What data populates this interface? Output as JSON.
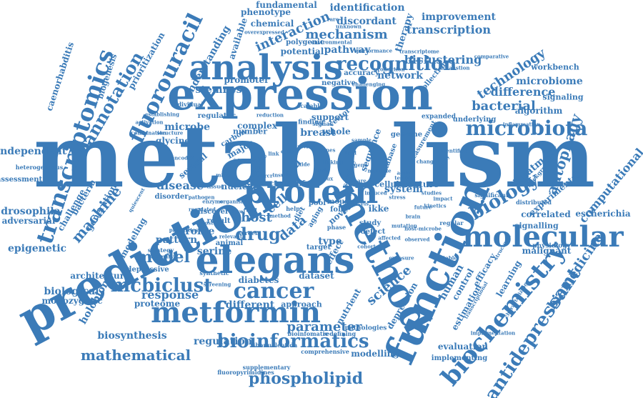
{
  "word_cloud": {
    "color": "#3b7bb8",
    "words": [
      {
        "text": "metabolism"
      },
      {
        "text": "expression"
      },
      {
        "text": "prediction"
      },
      {
        "text": "function"
      },
      {
        "text": "method"
      },
      {
        "text": "elegans"
      },
      {
        "text": "protein"
      },
      {
        "text": "analysis"
      },
      {
        "text": "molecular"
      },
      {
        "text": "metformin"
      },
      {
        "text": "biochemistry"
      },
      {
        "text": "transcriptomics"
      },
      {
        "text": "fluorouracil"
      },
      {
        "text": "cancer"
      },
      {
        "text": "biology"
      },
      {
        "text": "microbiota"
      },
      {
        "text": "recognition"
      },
      {
        "text": "mcbiclust"
      },
      {
        "text": "model"
      },
      {
        "text": "drug"
      },
      {
        "text": "annotation"
      },
      {
        "text": "antidepressant"
      },
      {
        "text": "bioinformatics"
      },
      {
        "text": "phospholipid"
      },
      {
        "text": "mathematical"
      },
      {
        "text": "autophagy"
      },
      {
        "text": "technology"
      },
      {
        "text": "science"
      },
      {
        "text": "computational"
      },
      {
        "text": "biomedicine"
      },
      {
        "text": "caenorhabditis"
      },
      {
        "text": "mechanism"
      },
      {
        "text": "interaction"
      },
      {
        "text": "biclustering"
      },
      {
        "text": "transcription"
      },
      {
        "text": "identification"
      },
      {
        "text": "fundamental"
      },
      {
        "text": "phenotype"
      },
      {
        "text": "discordant"
      },
      {
        "text": "chemical"
      },
      {
        "text": "improvement"
      },
      {
        "text": "microbiome"
      },
      {
        "text": "workbench"
      },
      {
        "text": "difference"
      },
      {
        "text": "bacterial"
      },
      {
        "text": "algorithm"
      },
      {
        "text": "signaling"
      },
      {
        "text": "network"
      },
      {
        "text": "pathway"
      },
      {
        "text": "machine"
      },
      {
        "text": "microbe"
      },
      {
        "text": "disease"
      },
      {
        "text": "pattern"
      },
      {
        "text": "profile"
      },
      {
        "text": "response"
      },
      {
        "text": "proteome"
      },
      {
        "text": "different"
      },
      {
        "text": "biosynthesis"
      },
      {
        "text": "regulation"
      },
      {
        "text": "parameter"
      },
      {
        "text": "dataset"
      },
      {
        "text": "diabetes"
      },
      {
        "text": "approach"
      },
      {
        "text": "serine"
      },
      {
        "text": "host"
      },
      {
        "text": "cell"
      },
      {
        "text": "data"
      },
      {
        "text": "type"
      },
      {
        "text": "breast"
      },
      {
        "text": "whole"
      },
      {
        "text": "support"
      },
      {
        "text": "complex"
      },
      {
        "text": "system"
      },
      {
        "text": "feature"
      },
      {
        "text": "treatment"
      },
      {
        "text": "human"
      },
      {
        "text": "escherichia"
      },
      {
        "text": "correlated"
      },
      {
        "text": "signalling"
      },
      {
        "text": "malignant"
      },
      {
        "text": "physiology"
      },
      {
        "text": "learning"
      },
      {
        "text": "efficacy"
      },
      {
        "text": "estimation"
      },
      {
        "text": "control"
      },
      {
        "text": "evaluation"
      },
      {
        "text": "implementing"
      },
      {
        "text": "modelling"
      },
      {
        "text": "pathologies"
      },
      {
        "text": "nutrient"
      },
      {
        "text": "depression"
      },
      {
        "text": "independent"
      },
      {
        "text": "drosophila"
      },
      {
        "text": "adversarial"
      },
      {
        "text": "epigenetic"
      },
      {
        "text": "bacteria"
      },
      {
        "text": "generation"
      },
      {
        "text": "modeling"
      },
      {
        "text": "challenge"
      },
      {
        "text": "holobiont"
      },
      {
        "text": "architecture"
      },
      {
        "text": "biological"
      },
      {
        "text": "monozygotic"
      },
      {
        "text": "depressive"
      },
      {
        "text": "biogenesis"
      },
      {
        "text": "prioritization"
      },
      {
        "text": "understanding"
      },
      {
        "text": "stemness"
      },
      {
        "text": "promoter"
      },
      {
        "text": "available"
      },
      {
        "text": "glycine"
      },
      {
        "text": "assessment"
      },
      {
        "text": "disorder"
      },
      {
        "text": "several"
      },
      {
        "text": "coli"
      },
      {
        "text": "nuclear"
      },
      {
        "text": "factor"
      },
      {
        "text": "tumor"
      },
      {
        "text": "genetic"
      },
      {
        "text": "novel"
      },
      {
        "text": "cellular"
      },
      {
        "text": "ikke"
      },
      {
        "text": "study"
      },
      {
        "text": "defect"
      },
      {
        "text": "target"
      },
      {
        "text": "effect"
      },
      {
        "text": "result"
      },
      {
        "text": "screen"
      },
      {
        "text": "animal"
      },
      {
        "text": "strategy"
      },
      {
        "text": "summary"
      },
      {
        "text": "synthetic"
      },
      {
        "text": "genome"
      },
      {
        "text": "sequence"
      },
      {
        "text": "database"
      },
      {
        "text": "service"
      },
      {
        "text": "number"
      },
      {
        "text": "discover"
      },
      {
        "text": "major"
      },
      {
        "text": "carbon"
      },
      {
        "text": "finding"
      },
      {
        "text": "signal"
      },
      {
        "text": "vector"
      },
      {
        "text": "potential"
      },
      {
        "text": "polygenic"
      },
      {
        "text": "negative"
      },
      {
        "text": "accuracy"
      },
      {
        "text": "collection"
      },
      {
        "text": "regulator"
      },
      {
        "text": "individual"
      },
      {
        "text": "bioinfomatic"
      },
      {
        "text": "redefining"
      },
      {
        "text": "ribonucleotide"
      },
      {
        "text": "comprehensive"
      },
      {
        "text": "supplementary"
      },
      {
        "text": "fluoropyrimidines"
      },
      {
        "text": "therapy"
      },
      {
        "text": "environmental"
      },
      {
        "text": "overexpressed"
      },
      {
        "text": "unknown"
      },
      {
        "text": "heterogeneous"
      },
      {
        "text": "rare"
      },
      {
        "text": "expanded"
      },
      {
        "text": "underlying"
      },
      {
        "text": "measurement"
      },
      {
        "text": "experimental"
      },
      {
        "text": "background"
      },
      {
        "text": "classification"
      },
      {
        "text": "significant"
      },
      {
        "text": "distributed"
      },
      {
        "text": "regular"
      },
      {
        "text": "scalable"
      },
      {
        "text": "mouse"
      },
      {
        "text": "fold"
      },
      {
        "text": "life"
      },
      {
        "text": "pool"
      },
      {
        "text": "aging"
      },
      {
        "text": "diet"
      },
      {
        "text": "help"
      },
      {
        "text": "phase"
      },
      {
        "text": "identifies"
      },
      {
        "text": "exhaustion"
      },
      {
        "text": "production"
      },
      {
        "text": "performance"
      },
      {
        "text": "transcriptome"
      },
      {
        "text": "comparative"
      },
      {
        "text": "challenging"
      },
      {
        "text": "structural"
      },
      {
        "text": "transcriptional"
      },
      {
        "text": "characterizing"
      },
      {
        "text": "implementation"
      },
      {
        "text": "inflammation"
      },
      {
        "text": "mutation"
      },
      {
        "text": "observed"
      },
      {
        "text": "variability"
      },
      {
        "text": "studies"
      },
      {
        "text": "change"
      },
      {
        "text": "combination"
      },
      {
        "text": "structure"
      },
      {
        "text": "encoded"
      },
      {
        "text": "relevant"
      },
      {
        "text": "quiescent"
      },
      {
        "text": "properties"
      },
      {
        "text": "reduction"
      },
      {
        "text": "process"
      },
      {
        "text": "enzyme"
      },
      {
        "text": "testing"
      },
      {
        "text": "affected"
      },
      {
        "text": "kinetics"
      },
      {
        "text": "cells"
      },
      {
        "text": "review"
      },
      {
        "text": "state"
      },
      {
        "text": "genes"
      },
      {
        "text": "link"
      },
      {
        "text": "linking"
      },
      {
        "text": "insulin"
      },
      {
        "text": "lipid"
      },
      {
        "text": "known"
      },
      {
        "text": "guide"
      },
      {
        "text": "share"
      },
      {
        "text": "mass"
      },
      {
        "text": "ahrcr"
      },
      {
        "text": "gene"
      },
      {
        "text": "level"
      },
      {
        "text": "acid"
      },
      {
        "text": "induced"
      },
      {
        "text": "pathogen"
      },
      {
        "text": "multiple"
      },
      {
        "text": "tissue"
      },
      {
        "text": "flux"
      },
      {
        "text": "sample"
      },
      {
        "text": "active"
      },
      {
        "text": "brain"
      },
      {
        "text": "tool"
      },
      {
        "text": "host-microbe"
      },
      {
        "text": "future"
      },
      {
        "text": "stress"
      },
      {
        "text": "activation"
      },
      {
        "text": "establishing"
      },
      {
        "text": "impact"
      },
      {
        "text": "levels"
      },
      {
        "text": "organism"
      },
      {
        "text": "regulated"
      },
      {
        "text": "method"
      },
      {
        "text": "cohort"
      },
      {
        "text": "exposure"
      },
      {
        "text": "stable"
      },
      {
        "text": "host"
      },
      {
        "text": "screening"
      }
    ]
  }
}
